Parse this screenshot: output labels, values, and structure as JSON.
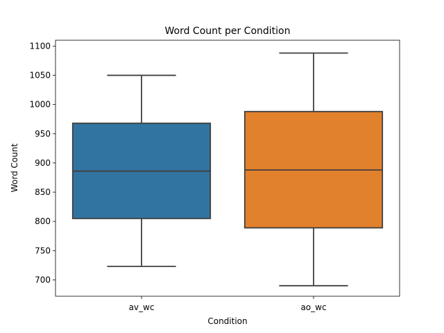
{
  "chart_data": {
    "type": "box",
    "title": "Word Count per Condition",
    "xlabel": "Condition",
    "ylabel": "Word Count",
    "categories": [
      "av_wc",
      "ao_wc"
    ],
    "ylim": [
      672,
      1110
    ],
    "yticks": [
      700,
      750,
      800,
      850,
      900,
      950,
      1000,
      1050,
      1100
    ],
    "grid": false,
    "series": [
      {
        "category": "av_wc",
        "min": 723,
        "q1": 805,
        "median": 886,
        "q3": 968,
        "max": 1050,
        "color": "#3274a1"
      },
      {
        "category": "ao_wc",
        "min": 690,
        "q1": 789,
        "median": 888,
        "q3": 988,
        "max": 1088,
        "color": "#e1812c"
      }
    ]
  }
}
